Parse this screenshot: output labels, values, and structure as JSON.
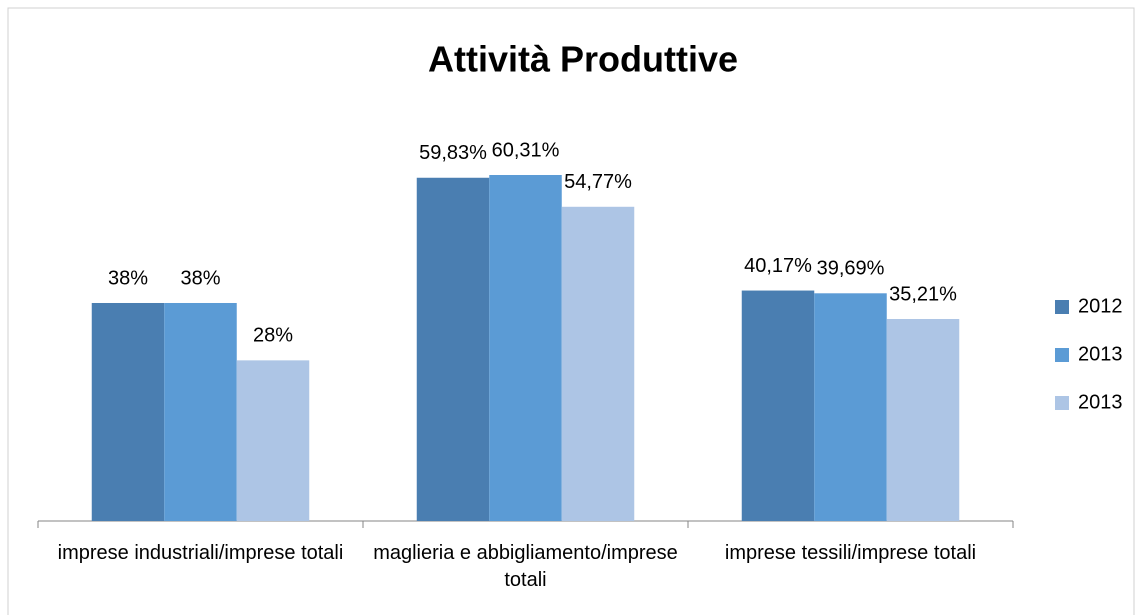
{
  "chart_data": {
    "type": "bar",
    "title": "Attività Produttive",
    "categories": [
      "imprese industriali/imprese totali",
      "maglieria e abbigliamento/imprese totali",
      "imprese tessili/imprese totali"
    ],
    "series": [
      {
        "name": "2012",
        "color": "#4a7eb1",
        "values": [
          38,
          59.83,
          40.17
        ],
        "value_labels": [
          "38%",
          "59,83%",
          "40,17%"
        ]
      },
      {
        "name": "2013",
        "color": "#5b9bd5",
        "values": [
          38,
          60.31,
          39.69
        ],
        "value_labels": [
          "38%",
          "60,31%",
          "39,69%"
        ]
      },
      {
        "name": "2013",
        "color": "#adc5e5",
        "values": [
          28,
          54.77,
          35.21
        ],
        "value_labels": [
          "28%",
          "54,77%",
          "35,21%"
        ]
      }
    ],
    "legend": "right"
  }
}
